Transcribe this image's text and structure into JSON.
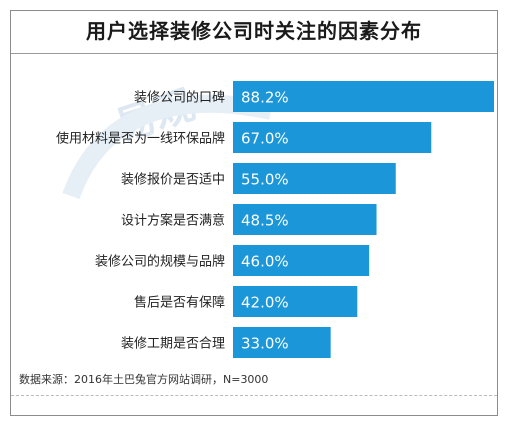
{
  "chart_data": {
    "type": "bar",
    "orientation": "horizontal",
    "title": "用户选择装修公司时关注的因素分布",
    "categories": [
      "装修公司的口碑",
      "使用材料是否为一线环保品牌",
      "装修报价是否适中",
      "设计方案是否满意",
      "装修公司的规模与品牌",
      "售后是否有保障",
      "装修工期是否合理"
    ],
    "values": [
      88.2,
      67.0,
      55.0,
      48.5,
      46.0,
      42.0,
      33.0
    ],
    "value_labels": [
      "88.2%",
      "67.0%",
      "55.0%",
      "48.5%",
      "46.0%",
      "42.0%",
      "33.0%"
    ],
    "unit": "%",
    "xlim": [
      0,
      88.2
    ],
    "bar_color": "#1a96d9",
    "label_color": "#ffffff",
    "grid": false,
    "legend": "none"
  },
  "source_note": "数据来源：2016年土巴兔官方网站调研，N=3000",
  "watermark_text": "易观"
}
